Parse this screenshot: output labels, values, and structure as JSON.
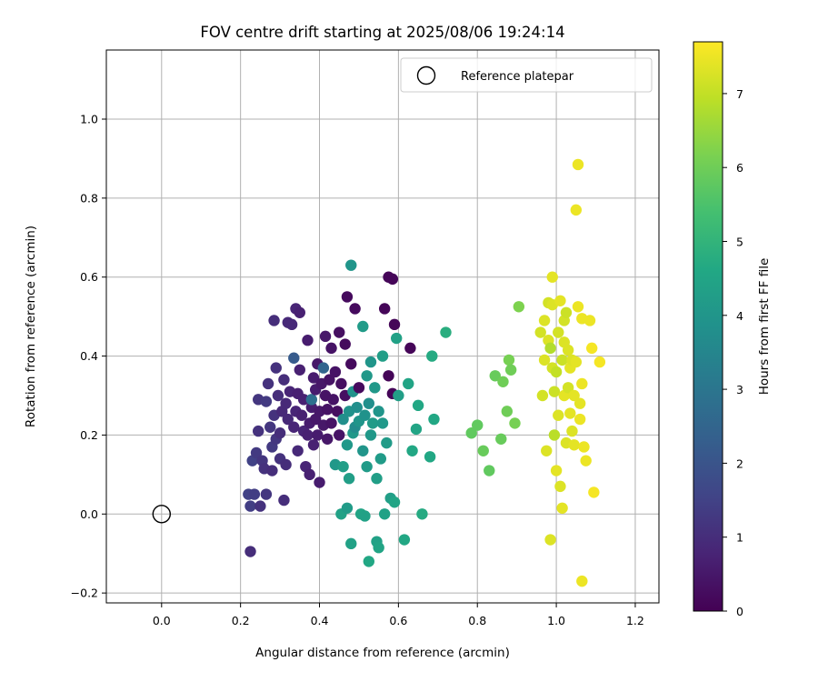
{
  "chart_data": {
    "type": "scatter",
    "title": "FOV centre drift starting at 2025/08/06 19:24:14",
    "xlabel": "Angular distance from reference (arcmin)",
    "ylabel": "Rotation from reference (arcmin)",
    "xlim": [
      -0.14,
      1.26
    ],
    "ylim": [
      -0.225,
      1.175
    ],
    "xticks": [
      0.0,
      0.2,
      0.4,
      0.6,
      0.8,
      1.0,
      1.2
    ],
    "xtick_labels": [
      "0.0",
      "0.2",
      "0.4",
      "0.6",
      "0.8",
      "1.0",
      "1.2"
    ],
    "yticks": [
      -0.2,
      0.0,
      0.2,
      0.4,
      0.6,
      0.8,
      1.0
    ],
    "ytick_labels": [
      "−0.2",
      "0.0",
      "0.2",
      "0.4",
      "0.6",
      "0.8",
      "1.0"
    ],
    "grid": true,
    "legend": {
      "position": "top-right",
      "entries": [
        "Reference platepar"
      ]
    },
    "reference_point": {
      "x": 0.0,
      "y": 0.0,
      "label": "Reference platepar"
    },
    "colorbar": {
      "label": "Hours from first FF file",
      "colormap": "viridis",
      "range": [
        0,
        7.7
      ],
      "ticks": [
        0,
        1,
        2,
        3,
        4,
        5,
        6,
        7
      ],
      "tick_labels": [
        "0",
        "1",
        "2",
        "3",
        "4",
        "5",
        "6",
        "7"
      ]
    },
    "points": [
      {
        "x": 0.22,
        "y": 0.05,
        "c": 1.5
      },
      {
        "x": 0.225,
        "y": 0.02,
        "c": 1.4
      },
      {
        "x": 0.23,
        "y": 0.135,
        "c": 1.5
      },
      {
        "x": 0.235,
        "y": 0.05,
        "c": 1.4
      },
      {
        "x": 0.24,
        "y": 0.155,
        "c": 1.3
      },
      {
        "x": 0.245,
        "y": 0.29,
        "c": 1.2
      },
      {
        "x": 0.25,
        "y": 0.02,
        "c": 1.1
      },
      {
        "x": 0.225,
        "y": -0.095,
        "c": 1.0
      },
      {
        "x": 0.245,
        "y": 0.21,
        "c": 1.1
      },
      {
        "x": 0.255,
        "y": 0.135,
        "c": 1.2
      },
      {
        "x": 0.26,
        "y": 0.115,
        "c": 1.1
      },
      {
        "x": 0.265,
        "y": 0.05,
        "c": 1.2
      },
      {
        "x": 0.265,
        "y": 0.285,
        "c": 1.3
      },
      {
        "x": 0.27,
        "y": 0.33,
        "c": 1.1
      },
      {
        "x": 0.275,
        "y": 0.22,
        "c": 1.2
      },
      {
        "x": 0.28,
        "y": 0.11,
        "c": 1.0
      },
      {
        "x": 0.28,
        "y": 0.17,
        "c": 1.3
      },
      {
        "x": 0.285,
        "y": 0.49,
        "c": 1.0
      },
      {
        "x": 0.285,
        "y": 0.25,
        "c": 1.1
      },
      {
        "x": 0.29,
        "y": 0.19,
        "c": 1.2
      },
      {
        "x": 0.29,
        "y": 0.37,
        "c": 1.1
      },
      {
        "x": 0.295,
        "y": 0.3,
        "c": 1.0
      },
      {
        "x": 0.3,
        "y": 0.14,
        "c": 1.1
      },
      {
        "x": 0.3,
        "y": 0.205,
        "c": 1.0
      },
      {
        "x": 0.305,
        "y": 0.26,
        "c": 0.9
      },
      {
        "x": 0.31,
        "y": 0.035,
        "c": 1.0
      },
      {
        "x": 0.31,
        "y": 0.34,
        "c": 1.0
      },
      {
        "x": 0.315,
        "y": 0.28,
        "c": 0.9
      },
      {
        "x": 0.315,
        "y": 0.125,
        "c": 1.0
      },
      {
        "x": 0.32,
        "y": 0.485,
        "c": 0.9
      },
      {
        "x": 0.32,
        "y": 0.24,
        "c": 0.9
      },
      {
        "x": 0.325,
        "y": 0.31,
        "c": 0.8
      },
      {
        "x": 0.33,
        "y": 0.48,
        "c": 0.9
      },
      {
        "x": 0.335,
        "y": 0.395,
        "c": 2.2
      },
      {
        "x": 0.335,
        "y": 0.22,
        "c": 0.8
      },
      {
        "x": 0.34,
        "y": 0.26,
        "c": 0.8
      },
      {
        "x": 0.345,
        "y": 0.305,
        "c": 0.7
      },
      {
        "x": 0.34,
        "y": 0.52,
        "c": 0.8
      },
      {
        "x": 0.345,
        "y": 0.16,
        "c": 0.9
      },
      {
        "x": 0.35,
        "y": 0.51,
        "c": 0.7
      },
      {
        "x": 0.35,
        "y": 0.365,
        "c": 0.7
      },
      {
        "x": 0.355,
        "y": 0.25,
        "c": 0.7
      },
      {
        "x": 0.36,
        "y": 0.21,
        "c": 0.8
      },
      {
        "x": 0.36,
        "y": 0.29,
        "c": 0.7
      },
      {
        "x": 0.365,
        "y": 0.12,
        "c": 0.8
      },
      {
        "x": 0.37,
        "y": 0.2,
        "c": 0.7
      },
      {
        "x": 0.37,
        "y": 0.44,
        "c": 0.6
      },
      {
        "x": 0.375,
        "y": 0.1,
        "c": 0.7
      },
      {
        "x": 0.375,
        "y": 0.23,
        "c": 0.6
      },
      {
        "x": 0.38,
        "y": 0.27,
        "c": 0.6
      },
      {
        "x": 0.38,
        "y": 0.29,
        "c": 2.8
      },
      {
        "x": 0.385,
        "y": 0.345,
        "c": 0.6
      },
      {
        "x": 0.385,
        "y": 0.175,
        "c": 0.7
      },
      {
        "x": 0.39,
        "y": 0.24,
        "c": 0.5
      },
      {
        "x": 0.39,
        "y": 0.315,
        "c": 0.6
      },
      {
        "x": 0.395,
        "y": 0.38,
        "c": 0.5
      },
      {
        "x": 0.395,
        "y": 0.2,
        "c": 0.6
      },
      {
        "x": 0.4,
        "y": 0.08,
        "c": 0.6
      },
      {
        "x": 0.4,
        "y": 0.26,
        "c": 0.5
      },
      {
        "x": 0.405,
        "y": 0.33,
        "c": 0.5
      },
      {
        "x": 0.41,
        "y": 0.225,
        "c": 0.5
      },
      {
        "x": 0.41,
        "y": 0.37,
        "c": 2.5
      },
      {
        "x": 0.415,
        "y": 0.45,
        "c": 0.5
      },
      {
        "x": 0.415,
        "y": 0.3,
        "c": 0.4
      },
      {
        "x": 0.42,
        "y": 0.19,
        "c": 0.5
      },
      {
        "x": 0.42,
        "y": 0.265,
        "c": 0.4
      },
      {
        "x": 0.425,
        "y": 0.34,
        "c": 0.4
      },
      {
        "x": 0.43,
        "y": 0.42,
        "c": 0.4
      },
      {
        "x": 0.43,
        "y": 0.23,
        "c": 0.4
      },
      {
        "x": 0.435,
        "y": 0.29,
        "c": 0.4
      },
      {
        "x": 0.44,
        "y": 0.125,
        "c": 4.1
      },
      {
        "x": 0.44,
        "y": 0.36,
        "c": 0.4
      },
      {
        "x": 0.445,
        "y": 0.26,
        "c": 0.3
      },
      {
        "x": 0.45,
        "y": 0.46,
        "c": 0.3
      },
      {
        "x": 0.45,
        "y": 0.2,
        "c": 0.4
      },
      {
        "x": 0.455,
        "y": 0.33,
        "c": 0.3
      },
      {
        "x": 0.455,
        "y": 0.0,
        "c": 4.4
      },
      {
        "x": 0.46,
        "y": 0.24,
        "c": 3.8
      },
      {
        "x": 0.46,
        "y": 0.12,
        "c": 4.3
      },
      {
        "x": 0.465,
        "y": 0.3,
        "c": 0.3
      },
      {
        "x": 0.465,
        "y": 0.43,
        "c": 0.2
      },
      {
        "x": 0.47,
        "y": 0.55,
        "c": 0.2
      },
      {
        "x": 0.47,
        "y": 0.015,
        "c": 4.2
      },
      {
        "x": 0.47,
        "y": 0.175,
        "c": 4.1
      },
      {
        "x": 0.475,
        "y": 0.26,
        "c": 3.9
      },
      {
        "x": 0.475,
        "y": 0.09,
        "c": 4.3
      },
      {
        "x": 0.48,
        "y": 0.63,
        "c": 4.0
      },
      {
        "x": 0.48,
        "y": 0.38,
        "c": 0.2
      },
      {
        "x": 0.48,
        "y": -0.075,
        "c": 4.4
      },
      {
        "x": 0.485,
        "y": 0.31,
        "c": 3.9
      },
      {
        "x": 0.485,
        "y": 0.205,
        "c": 4.1
      },
      {
        "x": 0.49,
        "y": 0.22,
        "c": 3.7
      },
      {
        "x": 0.49,
        "y": 0.52,
        "c": 0.2
      },
      {
        "x": 0.495,
        "y": 0.27,
        "c": 3.8
      },
      {
        "x": 0.5,
        "y": 0.235,
        "c": 4.0
      },
      {
        "x": 0.5,
        "y": 0.32,
        "c": 0.2
      },
      {
        "x": 0.505,
        "y": 0.0,
        "c": 4.5
      },
      {
        "x": 0.51,
        "y": 0.475,
        "c": 4.2
      },
      {
        "x": 0.51,
        "y": 0.16,
        "c": 4.0
      },
      {
        "x": 0.515,
        "y": 0.25,
        "c": 3.9
      },
      {
        "x": 0.515,
        "y": -0.005,
        "c": 4.4
      },
      {
        "x": 0.52,
        "y": 0.35,
        "c": 4.1
      },
      {
        "x": 0.52,
        "y": 0.12,
        "c": 4.2
      },
      {
        "x": 0.525,
        "y": 0.28,
        "c": 3.8
      },
      {
        "x": 0.525,
        "y": -0.12,
        "c": 4.6
      },
      {
        "x": 0.53,
        "y": 0.2,
        "c": 4.1
      },
      {
        "x": 0.53,
        "y": 0.385,
        "c": 4.0
      },
      {
        "x": 0.535,
        "y": 0.23,
        "c": 4.2
      },
      {
        "x": 0.54,
        "y": 0.32,
        "c": 4.1
      },
      {
        "x": 0.545,
        "y": -0.07,
        "c": 4.4
      },
      {
        "x": 0.545,
        "y": 0.09,
        "c": 4.3
      },
      {
        "x": 0.55,
        "y": 0.26,
        "c": 4.0
      },
      {
        "x": 0.55,
        "y": -0.085,
        "c": 4.5
      },
      {
        "x": 0.555,
        "y": 0.14,
        "c": 4.2
      },
      {
        "x": 0.56,
        "y": 0.23,
        "c": 4.1
      },
      {
        "x": 0.56,
        "y": 0.4,
        "c": 4.3
      },
      {
        "x": 0.565,
        "y": 0.52,
        "c": 0.1
      },
      {
        "x": 0.565,
        "y": 0.0,
        "c": 4.4
      },
      {
        "x": 0.57,
        "y": 0.18,
        "c": 4.2
      },
      {
        "x": 0.575,
        "y": 0.35,
        "c": 0.1
      },
      {
        "x": 0.575,
        "y": 0.6,
        "c": 0.1
      },
      {
        "x": 0.58,
        "y": 0.04,
        "c": 4.3
      },
      {
        "x": 0.585,
        "y": 0.305,
        "c": 0.1
      },
      {
        "x": 0.585,
        "y": 0.595,
        "c": 0.1
      },
      {
        "x": 0.59,
        "y": 0.48,
        "c": 0.1
      },
      {
        "x": 0.59,
        "y": 0.03,
        "c": 4.5
      },
      {
        "x": 0.595,
        "y": 0.445,
        "c": 4.4
      },
      {
        "x": 0.6,
        "y": 0.3,
        "c": 4.3
      },
      {
        "x": 0.615,
        "y": -0.065,
        "c": 4.6
      },
      {
        "x": 0.625,
        "y": 0.33,
        "c": 4.5
      },
      {
        "x": 0.63,
        "y": 0.42,
        "c": 0.1
      },
      {
        "x": 0.635,
        "y": 0.16,
        "c": 4.6
      },
      {
        "x": 0.645,
        "y": 0.215,
        "c": 4.5
      },
      {
        "x": 0.65,
        "y": 0.275,
        "c": 4.6
      },
      {
        "x": 0.66,
        "y": 0.0,
        "c": 4.7
      },
      {
        "x": 0.68,
        "y": 0.145,
        "c": 4.6
      },
      {
        "x": 0.685,
        "y": 0.4,
        "c": 4.7
      },
      {
        "x": 0.69,
        "y": 0.24,
        "c": 4.6
      },
      {
        "x": 0.72,
        "y": 0.46,
        "c": 4.8
      },
      {
        "x": 0.785,
        "y": 0.205,
        "c": 5.8
      },
      {
        "x": 0.8,
        "y": 0.225,
        "c": 5.8
      },
      {
        "x": 0.815,
        "y": 0.16,
        "c": 5.9
      },
      {
        "x": 0.83,
        "y": 0.11,
        "c": 5.8
      },
      {
        "x": 0.845,
        "y": 0.35,
        "c": 5.9
      },
      {
        "x": 0.86,
        "y": 0.19,
        "c": 5.9
      },
      {
        "x": 0.865,
        "y": 0.335,
        "c": 6.0
      },
      {
        "x": 0.875,
        "y": 0.26,
        "c": 6.0
      },
      {
        "x": 0.88,
        "y": 0.39,
        "c": 6.1
      },
      {
        "x": 0.885,
        "y": 0.365,
        "c": 6.0
      },
      {
        "x": 0.895,
        "y": 0.23,
        "c": 6.1
      },
      {
        "x": 0.905,
        "y": 0.525,
        "c": 6.2
      },
      {
        "x": 0.96,
        "y": 0.46,
        "c": 7.2
      },
      {
        "x": 0.965,
        "y": 0.3,
        "c": 7.2
      },
      {
        "x": 0.97,
        "y": 0.49,
        "c": 7.3
      },
      {
        "x": 0.97,
        "y": 0.39,
        "c": 7.3
      },
      {
        "x": 0.975,
        "y": 0.16,
        "c": 7.3
      },
      {
        "x": 0.98,
        "y": 0.535,
        "c": 7.2
      },
      {
        "x": 0.98,
        "y": 0.44,
        "c": 7.3
      },
      {
        "x": 0.985,
        "y": 0.42,
        "c": 6.8
      },
      {
        "x": 0.985,
        "y": -0.065,
        "c": 7.3
      },
      {
        "x": 0.99,
        "y": 0.6,
        "c": 7.4
      },
      {
        "x": 0.99,
        "y": 0.53,
        "c": 7.3
      },
      {
        "x": 0.99,
        "y": 0.37,
        "c": 7.2
      },
      {
        "x": 0.995,
        "y": 0.2,
        "c": 6.9
      },
      {
        "x": 0.995,
        "y": 0.31,
        "c": 7.1
      },
      {
        "x": 1.0,
        "y": 0.11,
        "c": 7.4
      },
      {
        "x": 1.0,
        "y": 0.36,
        "c": 7.0
      },
      {
        "x": 1.005,
        "y": 0.25,
        "c": 7.3
      },
      {
        "x": 1.005,
        "y": 0.46,
        "c": 7.2
      },
      {
        "x": 1.01,
        "y": 0.54,
        "c": 7.4
      },
      {
        "x": 1.01,
        "y": 0.07,
        "c": 7.3
      },
      {
        "x": 1.015,
        "y": 0.015,
        "c": 7.4
      },
      {
        "x": 1.015,
        "y": 0.39,
        "c": 7.1
      },
      {
        "x": 1.02,
        "y": 0.435,
        "c": 7.3
      },
      {
        "x": 1.02,
        "y": 0.49,
        "c": 7.2
      },
      {
        "x": 1.02,
        "y": 0.3,
        "c": 7.4
      },
      {
        "x": 1.025,
        "y": 0.18,
        "c": 7.3
      },
      {
        "x": 1.025,
        "y": 0.51,
        "c": 7.1
      },
      {
        "x": 1.03,
        "y": 0.415,
        "c": 7.3
      },
      {
        "x": 1.03,
        "y": 0.32,
        "c": 7.2
      },
      {
        "x": 1.035,
        "y": 0.255,
        "c": 7.4
      },
      {
        "x": 1.035,
        "y": 0.37,
        "c": 7.4
      },
      {
        "x": 1.04,
        "y": 0.21,
        "c": 7.3
      },
      {
        "x": 1.04,
        "y": 0.39,
        "c": 7.3
      },
      {
        "x": 1.045,
        "y": 0.3,
        "c": 7.4
      },
      {
        "x": 1.045,
        "y": 0.175,
        "c": 7.4
      },
      {
        "x": 1.05,
        "y": 0.77,
        "c": 7.5
      },
      {
        "x": 1.05,
        "y": 0.385,
        "c": 7.4
      },
      {
        "x": 1.055,
        "y": 0.885,
        "c": 7.5
      },
      {
        "x": 1.055,
        "y": 0.525,
        "c": 7.5
      },
      {
        "x": 1.06,
        "y": 0.28,
        "c": 7.4
      },
      {
        "x": 1.06,
        "y": 0.24,
        "c": 7.5
      },
      {
        "x": 1.065,
        "y": 0.495,
        "c": 7.5
      },
      {
        "x": 1.065,
        "y": 0.33,
        "c": 7.5
      },
      {
        "x": 1.065,
        "y": -0.17,
        "c": 7.5
      },
      {
        "x": 1.07,
        "y": 0.17,
        "c": 7.5
      },
      {
        "x": 1.075,
        "y": 0.135,
        "c": 7.5
      },
      {
        "x": 1.085,
        "y": 0.49,
        "c": 7.5
      },
      {
        "x": 1.09,
        "y": 0.42,
        "c": 7.6
      },
      {
        "x": 1.095,
        "y": 0.055,
        "c": 7.6
      },
      {
        "x": 1.11,
        "y": 0.385,
        "c": 7.6
      }
    ]
  }
}
